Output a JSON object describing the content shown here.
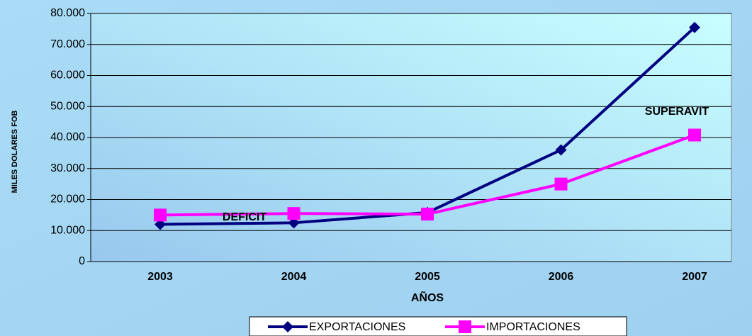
{
  "chart_data": {
    "type": "line",
    "categories": [
      "2003",
      "2004",
      "2005",
      "2006",
      "2007"
    ],
    "series": [
      {
        "name": "EXPORTACIONES",
        "color": "#000080",
        "marker": "diamond",
        "values": [
          12000,
          12500,
          15800,
          36000,
          75500
        ]
      },
      {
        "name": "IMPORTACIONES",
        "color": "#ff00ff",
        "marker": "square",
        "values": [
          15000,
          15500,
          15300,
          25000,
          40800
        ]
      }
    ],
    "xlabel": "AÑOS",
    "ylabel": "MILES DOLARES  FOB",
    "annotations": [
      "DEFICIT",
      "SUPERAVIT"
    ],
    "ylim": [
      0,
      80000
    ],
    "yticks": [
      0,
      {
        "value": 10000,
        "label": "10.000"
      },
      {
        "value": 20000,
        "label": "20.000"
      },
      {
        "value": 30000,
        "label": "30.000"
      },
      {
        "value": 40000,
        "label": "40.000"
      },
      {
        "value": 50000,
        "label": "50.000"
      },
      {
        "value": 60000,
        "label": "60.000"
      },
      {
        "value": 70000,
        "label": "70.000"
      },
      {
        "value": 80000,
        "label": "80.000"
      }
    ],
    "grid": true,
    "legend": "bottom"
  }
}
